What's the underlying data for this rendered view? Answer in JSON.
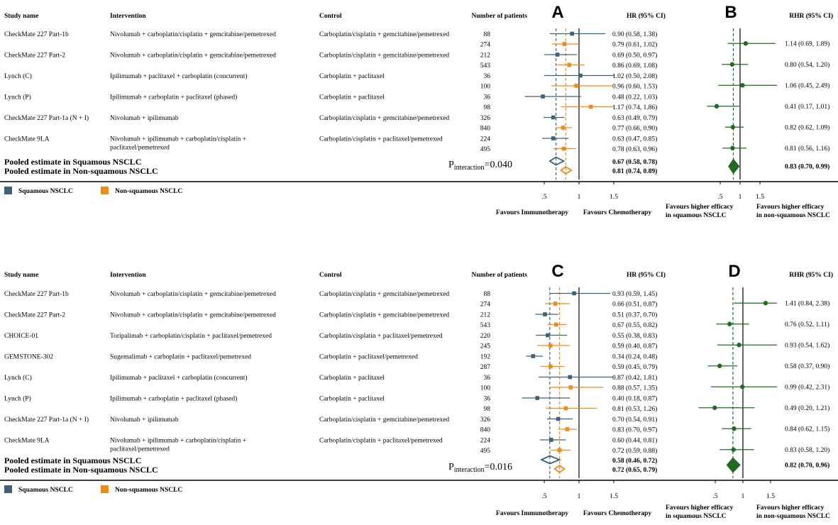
{
  "colors": {
    "squamous": "#3d6179",
    "nonsquamous": "#f28a17",
    "rhr": "#1e6b21",
    "axis": "#000000"
  },
  "chart_data": [
    {
      "panel_top": "A",
      "panel_bottom": "B",
      "type": "forest",
      "headers": {
        "study": "Study name",
        "intervention": "Intervention",
        "control": "Control",
        "patients": "Number of patients",
        "hr": "HR (95% CI)",
        "rhr": "RHR (95% CI)"
      },
      "studies": [
        {
          "name": "CheckMate 227 Part-1b",
          "intervention": [
            "Nivolumab + carboplatin/cisplatin + gemcitabine/pemetrexed"
          ],
          "control": "Carboplatin/cisplatin + gemcitabine/pemetrexed",
          "rows": [
            {
              "group": "squamous",
              "n": "88",
              "hr": 0.9,
              "lo": 0.58,
              "hi": 1.38,
              "label": "0.90 (0.58, 1.38)"
            },
            {
              "group": "nonsquamous",
              "n": "274",
              "hr": 0.79,
              "lo": 0.61,
              "hi": 1.02,
              "label": "0.79 (0.61, 1.02)"
            }
          ],
          "rhr": {
            "v": 1.14,
            "lo": 0.69,
            "hi": 1.89,
            "label": "1.14 (0.69, 1.89)"
          }
        },
        {
          "name": "CheckMate 227 Part-2",
          "intervention": [
            "Nivolumab + carboplatin/cisplatin + gemcitabine/pemetrexed"
          ],
          "control": "Carboplatin/cisplatin + gemcitabine/pemetrexed",
          "rows": [
            {
              "group": "squamous",
              "n": "212",
              "hr": 0.69,
              "lo": 0.5,
              "hi": 0.97,
              "label": "0.69 (0.50, 0.97)"
            },
            {
              "group": "nonsquamous",
              "n": "543",
              "hr": 0.86,
              "lo": 0.69,
              "hi": 1.08,
              "label": "0.86 (0.69, 1.08)"
            }
          ],
          "rhr": {
            "v": 0.8,
            "lo": 0.54,
            "hi": 1.2,
            "label": "0.80 (0.54, 1.20)"
          }
        },
        {
          "name": "Lynch (C)",
          "intervention": [
            "Ipilimumab + paclitaxel + carboplatin (concurrent)"
          ],
          "control": "Carboplatin + paclitaxel",
          "rows": [
            {
              "group": "squamous",
              "n": "36",
              "hr": 1.02,
              "lo": 0.5,
              "hi": 2.08,
              "label": "1.02 (0.50, 2.08)"
            },
            {
              "group": "nonsquamous",
              "n": "100",
              "hr": 0.96,
              "lo": 0.6,
              "hi": 1.53,
              "label": "0.96 (0.60, 1.53)"
            }
          ],
          "rhr": {
            "v": 1.06,
            "lo": 0.45,
            "hi": 2.49,
            "label": "1.06 (0.45, 2.49)"
          }
        },
        {
          "name": "Lynch (P)",
          "intervention": [
            "Ipilimumab + carboplatin + paclitaxel (phased)"
          ],
          "control": "Carboplatin + paclitaxel",
          "rows": [
            {
              "group": "squamous",
              "n": "36",
              "hr": 0.48,
              "lo": 0.22,
              "hi": 1.03,
              "label": "0.48 (0.22, 1.03)"
            },
            {
              "group": "nonsquamous",
              "n": "98",
              "hr": 1.17,
              "lo": 0.74,
              "hi": 1.86,
              "label": "1.17 (0.74, 1.86)"
            }
          ],
          "rhr": {
            "v": 0.41,
            "lo": 0.17,
            "hi": 1.01,
            "label": "0.41 (0.17, 1.01)"
          }
        },
        {
          "name": "CheckMate 227 Part-1a (N + I)",
          "intervention": [
            "Nivolumab + ipilimumab"
          ],
          "control": "Carboplatin/cisplatin + gemcitabine/pemetrexed",
          "rows": [
            {
              "group": "squamous",
              "n": "326",
              "hr": 0.63,
              "lo": 0.49,
              "hi": 0.79,
              "label": "0.63 (0.49, 0.79)"
            },
            {
              "group": "nonsquamous",
              "n": "840",
              "hr": 0.77,
              "lo": 0.66,
              "hi": 0.9,
              "label": "0.77 (0.66, 0.90)"
            }
          ],
          "rhr": {
            "v": 0.82,
            "lo": 0.62,
            "hi": 1.09,
            "label": "0.82 (0.62, 1.09)"
          }
        },
        {
          "name": "CheckMate 9LA",
          "intervention": [
            "Nivolumab + ipilimumab + carboplatin/cisplatin +",
            "paclitaxel/pemetrexed"
          ],
          "control": "Carboplatin/cisplatin + paclitaxel/pemetrexed",
          "rows": [
            {
              "group": "squamous",
              "n": "224",
              "hr": 0.63,
              "lo": 0.47,
              "hi": 0.85,
              "label": "0.63 (0.47, 0.85)"
            },
            {
              "group": "nonsquamous",
              "n": "495",
              "hr": 0.78,
              "lo": 0.63,
              "hi": 0.96,
              "label": "0.78 (0.63, 0.96)"
            }
          ],
          "rhr": {
            "v": 0.81,
            "lo": 0.56,
            "hi": 1.16,
            "label": "0.81 (0.56, 1.16)"
          }
        }
      ],
      "pooled": [
        {
          "group": "squamous",
          "label": "Pooled estimate in Squamous NSCLC",
          "hr": 0.67,
          "lo": 0.58,
          "hi": 0.78,
          "ci": "0.67 (0.58, 0.78)"
        },
        {
          "group": "nonsquamous",
          "label": "Pooled estimate in Non-squamous NSCLC",
          "hr": 0.81,
          "lo": 0.74,
          "hi": 0.89,
          "ci": "0.81 (0.74, 0.89)"
        }
      ],
      "pooled_rhr": {
        "v": 0.83,
        "lo": 0.7,
        "hi": 0.99,
        "label": "0.83 (0.70, 0.99)"
      },
      "p_interaction": {
        "prefix": "P",
        "sub": "interaction",
        "value": "=0.040"
      },
      "x_ticks": [
        ".5",
        "1",
        "1.5"
      ],
      "rhr_ticks": [
        ".5",
        "1",
        "1.5"
      ],
      "favours_left": "Favours Immunotherapy",
      "favours_right": "Favours Chemotherapy",
      "rhr_favours_left": [
        "Favours higher efficacy",
        "in squamous NSCLC"
      ],
      "rhr_favours_right": [
        "Favours higher efficacy",
        "in non-squamous NSCLC"
      ],
      "legend": [
        "Squamous NSCLC",
        "Non-squamous NSCLC"
      ]
    },
    {
      "panel_top": "C",
      "panel_bottom": "D",
      "type": "forest",
      "headers": {
        "study": "Study name",
        "intervention": "Intervention",
        "control": "Control",
        "patients": "Number of patients",
        "hr": "HR (95% CI)",
        "rhr": "RHR (95% CI)"
      },
      "studies": [
        {
          "name": "CheckMate 227 Part-1b",
          "intervention": [
            "Nivolumab + carboplatin/cisplatin + gemcitabine/pemetrexed"
          ],
          "control": "Carboplatin/cisplatin + gemcitabine/pemetrexed",
          "rows": [
            {
              "group": "squamous",
              "n": "88",
              "hr": 0.93,
              "lo": 0.59,
              "hi": 1.45,
              "label": "0.93 (0.59, 1.45)"
            },
            {
              "group": "nonsquamous",
              "n": "274",
              "hr": 0.66,
              "lo": 0.51,
              "hi": 0.87,
              "label": "0.66 (0.51, 0.87)"
            }
          ],
          "rhr": {
            "v": 1.41,
            "lo": 0.84,
            "hi": 2.38,
            "label": "1.41 (0.84, 2.38)"
          }
        },
        {
          "name": "CheckMate 227 Part-2",
          "intervention": [
            "Nivolumab + carboplatin/cisplatin + gemcitabine/pemetrexed"
          ],
          "control": "Carboplatin/cisplatin + gemcitabine/pemetrexed",
          "rows": [
            {
              "group": "squamous",
              "n": "212",
              "hr": 0.51,
              "lo": 0.37,
              "hi": 0.7,
              "label": "0.51 (0.37, 0.70)"
            },
            {
              "group": "nonsquamous",
              "n": "543",
              "hr": 0.67,
              "lo": 0.55,
              "hi": 0.82,
              "label": "0.67 (0.55, 0.82)"
            }
          ],
          "rhr": {
            "v": 0.76,
            "lo": 0.52,
            "hi": 1.11,
            "label": "0.76 (0.52, 1.11)"
          }
        },
        {
          "name": "CHOICE-01",
          "intervention": [
            "Toripalimab + carboplatin/cisplatin + paclitaxel/pemetrexed"
          ],
          "control": "Carboplatin/cisplatin + paclitaxel/pemetrexed",
          "rows": [
            {
              "group": "squamous",
              "n": "220",
              "hr": 0.55,
              "lo": 0.38,
              "hi": 0.83,
              "label": "0.55 (0.38, 0.83)"
            },
            {
              "group": "nonsquamous",
              "n": "245",
              "hr": 0.59,
              "lo": 0.4,
              "hi": 0.87,
              "label": "0.59 (0.40, 0.87)"
            }
          ],
          "rhr": {
            "v": 0.93,
            "lo": 0.54,
            "hi": 1.62,
            "label": "0.93 (0.54, 1.62)"
          }
        },
        {
          "name": "GEMSTONE-302",
          "intervention": [
            "Sugemalimab + carboplatin + paclitaxel/pemetrexed"
          ],
          "control": "Carboplatin + paclitaxel/pemetrexed",
          "rows": [
            {
              "group": "squamous",
              "n": "192",
              "hr": 0.34,
              "lo": 0.24,
              "hi": 0.48,
              "label": "0.34 (0.24, 0.48)"
            },
            {
              "group": "nonsquamous",
              "n": "287",
              "hr": 0.59,
              "lo": 0.45,
              "hi": 0.79,
              "label": "0.59 (0.45, 0.79)"
            }
          ],
          "rhr": {
            "v": 0.58,
            "lo": 0.37,
            "hi": 0.9,
            "label": "0.58 (0.37, 0.90)"
          }
        },
        {
          "name": "Lynch (C)",
          "intervention": [
            "Ipilimumab + paclitaxel + carboplatin (concurrent)"
          ],
          "control": "Carboplatin + paclitaxel",
          "rows": [
            {
              "group": "squamous",
              "n": "36",
              "hr": 0.87,
              "lo": 0.42,
              "hi": 1.81,
              "label": "0.87 (0.42, 1.81)"
            },
            {
              "group": "nonsquamous",
              "n": "100",
              "hr": 0.88,
              "lo": 0.57,
              "hi": 1.35,
              "label": "0.88 (0.57, 1.35)"
            }
          ],
          "rhr": {
            "v": 0.99,
            "lo": 0.42,
            "hi": 2.31,
            "label": "0.99 (0.42, 2.31)"
          }
        },
        {
          "name": "Lynch (P)",
          "intervention": [
            "Ipilimumab + carboplatin + paclitaxel (phased)"
          ],
          "control": "Carboplatin + paclitaxel",
          "rows": [
            {
              "group": "squamous",
              "n": "36",
              "hr": 0.4,
              "lo": 0.18,
              "hi": 0.87,
              "label": "0.40 (0.18, 0.87)"
            },
            {
              "group": "nonsquamous",
              "n": "98",
              "hr": 0.81,
              "lo": 0.53,
              "hi": 1.26,
              "label": "0.81 (0.53, 1.26)"
            }
          ],
          "rhr": {
            "v": 0.49,
            "lo": 0.2,
            "hi": 1.21,
            "label": "0.49 (0.20, 1.21)"
          }
        },
        {
          "name": "CheckMate 227 Part-1a (N + I)",
          "intervention": [
            "Nivolumab + ipilimumab"
          ],
          "control": "Carboplatin/cisplatin + gemcitabine/pemetrexed",
          "rows": [
            {
              "group": "squamous",
              "n": "326",
              "hr": 0.7,
              "lo": 0.54,
              "hi": 0.91,
              "label": "0.70 (0.54, 0.91)"
            },
            {
              "group": "nonsquamous",
              "n": "840",
              "hr": 0.83,
              "lo": 0.7,
              "hi": 0.97,
              "label": "0.83 (0.70, 0.97)"
            }
          ],
          "rhr": {
            "v": 0.84,
            "lo": 0.62,
            "hi": 1.15,
            "label": "0.84 (0.62, 1.15)"
          }
        },
        {
          "name": "CheckMate 9LA",
          "intervention": [
            "Nivolumab + ipilimumab + carboplatin/cisplatin +",
            "paclitaxel/pemetrexed"
          ],
          "control": "Carboplatin/cisplatin + paclitaxel/pemetrexed",
          "rows": [
            {
              "group": "squamous",
              "n": "224",
              "hr": 0.6,
              "lo": 0.44,
              "hi": 0.81,
              "label": "0.60 (0.44, 0.81)"
            },
            {
              "group": "nonsquamous",
              "n": "495",
              "hr": 0.72,
              "lo": 0.59,
              "hi": 0.88,
              "label": "0.72 (0.59, 0.88)"
            }
          ],
          "rhr": {
            "v": 0.83,
            "lo": 0.58,
            "hi": 1.2,
            "label": "0.83 (0.58, 1.20)"
          }
        }
      ],
      "pooled": [
        {
          "group": "squamous",
          "label": "Pooled estimate in Squamous NSCLC",
          "hr": 0.58,
          "lo": 0.46,
          "hi": 0.72,
          "ci": "0.58 (0.46, 0.72)"
        },
        {
          "group": "nonsquamous",
          "label": "Pooled estimate in Non-squamous NSCLC",
          "hr": 0.72,
          "lo": 0.65,
          "hi": 0.79,
          "ci": "0.72 (0.65, 0.79)"
        }
      ],
      "pooled_rhr": {
        "v": 0.82,
        "lo": 0.7,
        "hi": 0.96,
        "label": "0.82 (0.70, 0.96)"
      },
      "p_interaction": {
        "prefix": "P",
        "sub": "interaction",
        "value": "=0.016"
      },
      "x_ticks": [
        ".5",
        "1",
        "1.5"
      ],
      "rhr_ticks": [
        ".5",
        "1",
        "1.5"
      ],
      "favours_left": "Favours Immunotherapy",
      "favours_right": "Favours Chemotherapy",
      "rhr_favours_left": [
        "Favours higher efficacy",
        "in squamous NSCLC"
      ],
      "rhr_favours_right": [
        "Favours higher efficacy",
        "in non-squamous NSCLC"
      ],
      "legend": [
        "Squamous NSCLC",
        "Non-squamous NSCLC"
      ]
    }
  ]
}
